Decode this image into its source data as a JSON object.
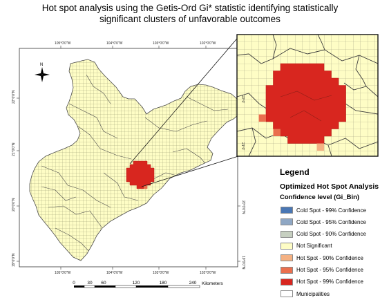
{
  "title": {
    "line1": "Hot spot analysis using the Getis-Ord Gi* statistic identifying statistically",
    "line2": "significant clusters of unfavorable outcomes"
  },
  "map": {
    "longitude_labels": [
      "105°0'0\"W",
      "104°0'0\"W",
      "103°0'0\"W",
      "102°0'0\"W"
    ],
    "latitude_labels": [
      "22°0'0\"N",
      "21°0'0\"N",
      "20°0'0\"N",
      "19°0'0\"N"
    ],
    "inset_latitude_labels": [
      "22°0'",
      "21°0'"
    ],
    "north_arrow_letter": "N",
    "scale_ticks": [
      "0",
      "30",
      "60",
      "120",
      "180",
      "240"
    ],
    "scale_unit": "Kilometers",
    "hot_spot_color": "#d8261f",
    "not_significant_color": "#fefdc5",
    "grid_line_color": "#8d8d6a",
    "boundary_color": "#4a4a4a"
  },
  "legend": {
    "heading": "Legend",
    "subtitle": "Optimized Hot Spot Analysis",
    "field": "Confidence level (Gi_Bin)",
    "items": [
      {
        "label": "Cold Spot - 99% Confidence",
        "color": "#4a77b4"
      },
      {
        "label": "Cold Spot - 95% Confidence",
        "color": "#8fa7c4"
      },
      {
        "label": "Cold Spot - 90% Confidence",
        "color": "#c6cfc0"
      },
      {
        "label": "Not Significant",
        "color": "#fefdc5"
      },
      {
        "label": "Hot Spot - 90% Confidence",
        "color": "#f4b183"
      },
      {
        "label": "Hot Spot - 95% Confidence",
        "color": "#ea6f4e"
      },
      {
        "label": "Hot Spot - 99% Confidence",
        "color": "#d8261f"
      },
      {
        "label": "Municipalities",
        "color": "#ffffff"
      }
    ]
  }
}
